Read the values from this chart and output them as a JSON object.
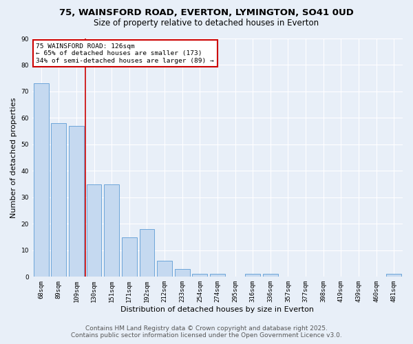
{
  "title1": "75, WAINSFORD ROAD, EVERTON, LYMINGTON, SO41 0UD",
  "title2": "Size of property relative to detached houses in Everton",
  "xlabel": "Distribution of detached houses by size in Everton",
  "ylabel": "Number of detached properties",
  "categories": [
    "68sqm",
    "89sqm",
    "109sqm",
    "130sqm",
    "151sqm",
    "171sqm",
    "192sqm",
    "212sqm",
    "233sqm",
    "254sqm",
    "274sqm",
    "295sqm",
    "316sqm",
    "336sqm",
    "357sqm",
    "377sqm",
    "398sqm",
    "419sqm",
    "439sqm",
    "460sqm",
    "481sqm"
  ],
  "values": [
    73,
    58,
    57,
    35,
    35,
    15,
    18,
    6,
    3,
    1,
    1,
    0,
    1,
    1,
    0,
    0,
    0,
    0,
    0,
    0,
    1
  ],
  "bar_color": "#c5d9f0",
  "bar_edge_color": "#5b9bd5",
  "background_color": "#e8eff8",
  "grid_color": "#ffffff",
  "red_line_x": 2.5,
  "annotation_text": "75 WAINSFORD ROAD: 126sqm\n← 65% of detached houses are smaller (173)\n34% of semi-detached houses are larger (89) →",
  "annotation_box_color": "#ffffff",
  "annotation_box_edge_color": "#cc0000",
  "ylim": [
    0,
    90
  ],
  "yticks": [
    0,
    10,
    20,
    30,
    40,
    50,
    60,
    70,
    80,
    90
  ],
  "footer1": "Contains HM Land Registry data © Crown copyright and database right 2025.",
  "footer2": "Contains public sector information licensed under the Open Government Licence v3.0.",
  "title1_fontsize": 9.5,
  "title2_fontsize": 8.5,
  "tick_fontsize": 6.5,
  "ylabel_fontsize": 8,
  "xlabel_fontsize": 8,
  "footer_fontsize": 6.5,
  "annotation_fontsize": 6.8
}
